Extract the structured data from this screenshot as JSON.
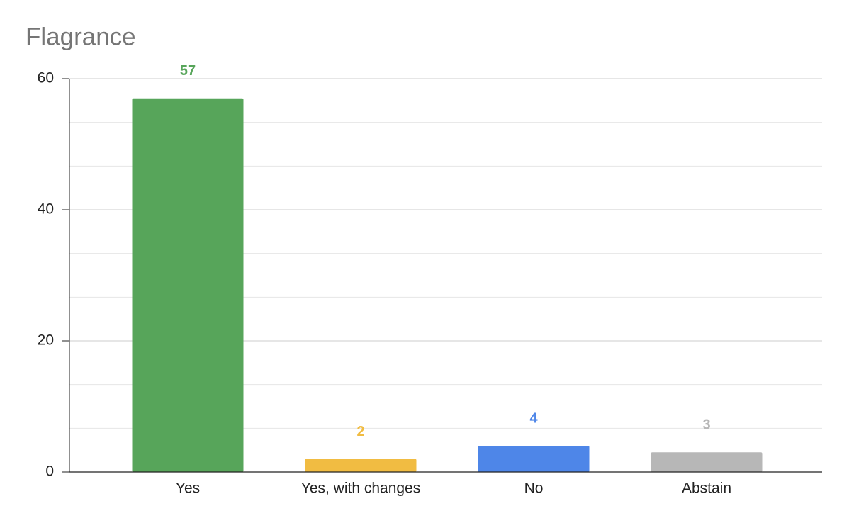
{
  "chart_data": {
    "type": "bar",
    "title": "Flagrance",
    "categories": [
      "Yes",
      "Yes, with changes",
      "No",
      "Abstain"
    ],
    "values": [
      57,
      2,
      4,
      3
    ],
    "colors": [
      "#57a55a",
      "#f1bc42",
      "#4e86e8",
      "#b7b7b7"
    ],
    "ylim": [
      0,
      60
    ],
    "yticks": [
      0,
      20,
      40,
      60
    ],
    "grid": true
  }
}
